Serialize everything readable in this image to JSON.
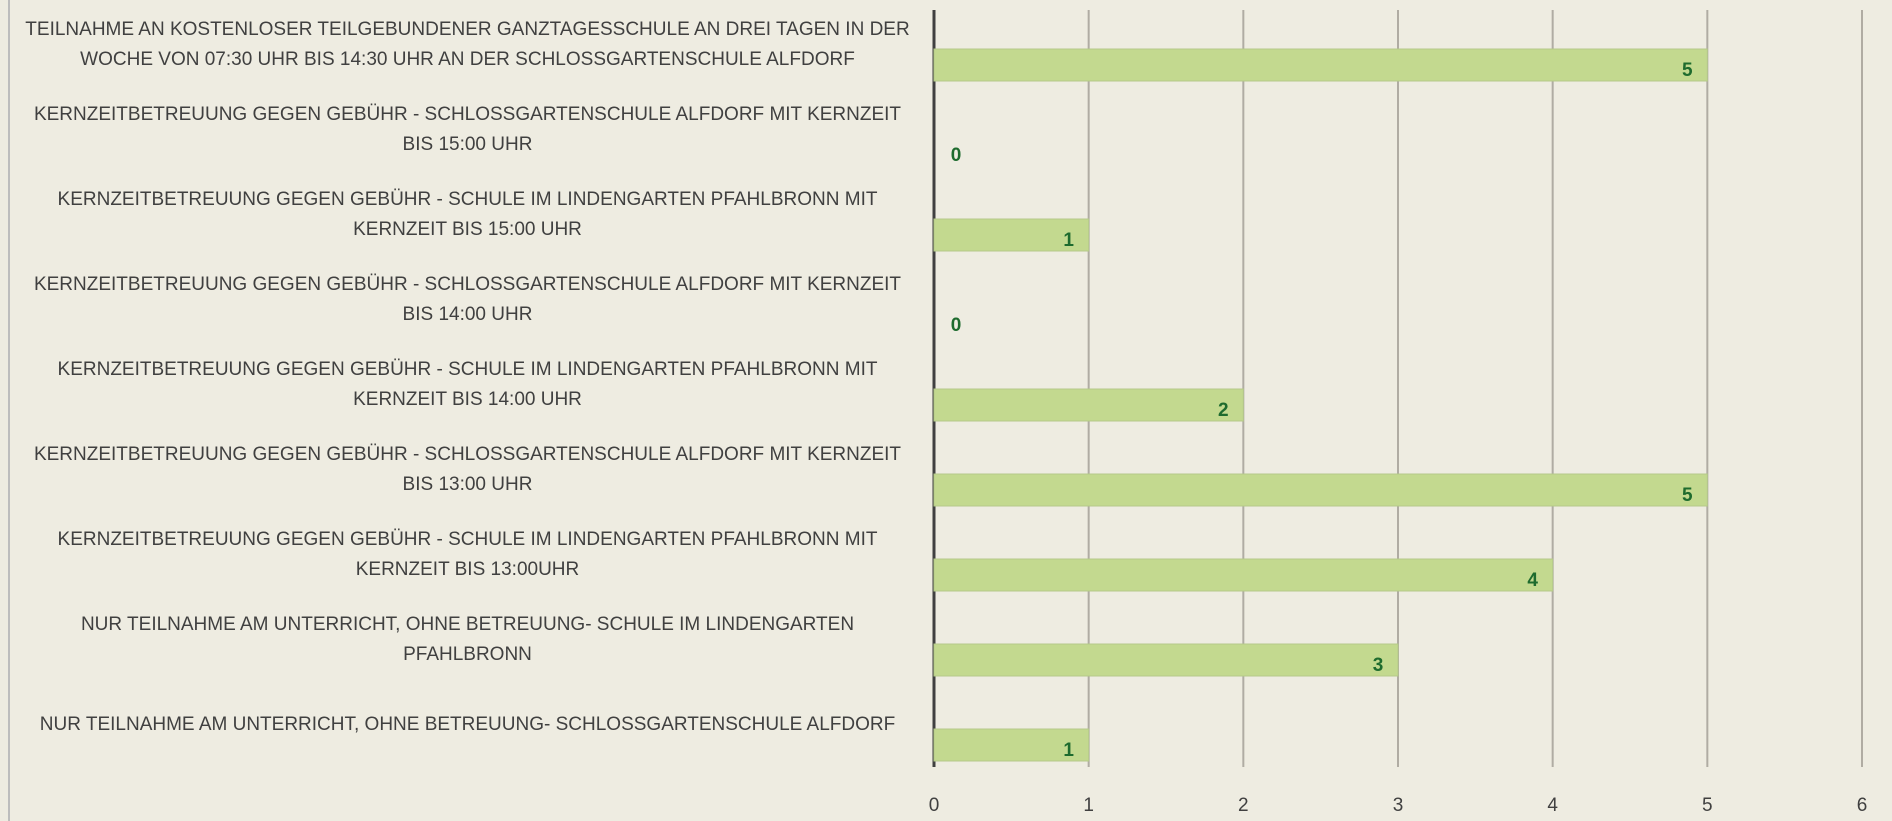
{
  "chart_data": {
    "type": "barh",
    "categories": [
      "TEILNAHME AN KOSTENLOSER TEILGEBUNDENER GANZTAGESSCHULE AN DREI TAGEN IN DER WOCHE VON 07:30 UHR BIS 14:30 UHR AN DER SCHLOSSGARTENSCHULE ALFDORF",
      "KERNZEITBETREUUNG GEGEN GEBÜHR - SCHLOSSGARTENSCHULE ALFDORF MIT KERNZEIT BIS 15:00 UHR",
      "KERNZEITBETREUUNG GEGEN GEBÜHR - SCHULE IM LINDENGARTEN PFAHLBRONN MIT KERNZEIT BIS 15:00 UHR",
      "KERNZEITBETREUUNG GEGEN GEBÜHR - SCHLOSSGARTENSCHULE ALFDORF MIT KERNZEIT BIS 14:00 UHR",
      "KERNZEITBETREUUNG GEGEN GEBÜHR - SCHULE IM LINDENGARTEN PFAHLBRONN MIT KERNZEIT BIS 14:00 UHR",
      "KERNZEITBETREUUNG GEGEN GEBÜHR - SCHLOSSGARTENSCHULE ALFDORF MIT KERNZEIT BIS 13:00 UHR",
      "KERNZEITBETREUUNG GEGEN GEBÜHR - SCHULE IM LINDENGARTEN PFAHLBRONN MIT KERNZEIT BIS 13:00UHR",
      "NUR TEILNAHME AM UNTERRICHT, OHNE BETREUUNG- SCHULE IM LINDENGARTEN PFAHLBRONN",
      "NUR TEILNAHME AM UNTERRICHT, OHNE BETREUUNG- SCHLOSSGARTENSCHULE ALFDORF"
    ],
    "values": [
      5,
      0,
      1,
      0,
      2,
      5,
      4,
      3,
      1
    ],
    "color": "#c3d98f",
    "label_color": "#1e6b2e",
    "xlim": [
      0,
      6
    ],
    "xticks": [
      0,
      1,
      2,
      3,
      4,
      5,
      6
    ],
    "grid": true
  }
}
